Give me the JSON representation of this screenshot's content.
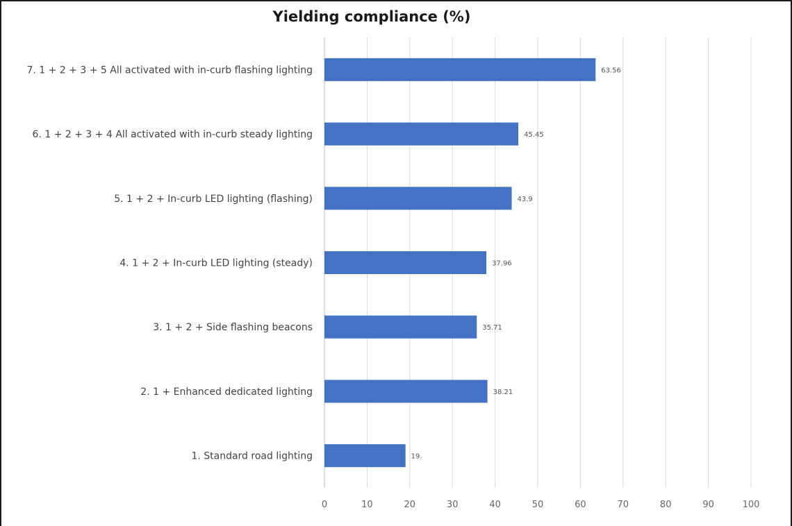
{
  "chart_data": {
    "type": "bar",
    "orientation": "horizontal",
    "title": "Yielding compliance (%)",
    "categories": [
      "7. 1 + 2 + 3 + 5 All activated with in-curb flashing lighting",
      "6. 1 + 2 + 3 + 4 All activated with in-curb steady lighting",
      "5. 1 + 2 + In-curb LED lighting (flashing)",
      "4. 1 + 2 + In-curb LED lighting (steady)",
      "3. 1 + 2 + Side flashing beacons",
      "2. 1 + Enhanced dedicated lighting",
      "1. Standard road lighting"
    ],
    "values": [
      63.56,
      45.45,
      43.9,
      37.96,
      35.71,
      38.21,
      19
    ],
    "data_labels": [
      "63.56",
      "45.45",
      "43.9",
      "37.96",
      "35.71",
      "38.21",
      "19."
    ],
    "xlim": [
      0,
      100
    ],
    "x_ticks": [
      "0",
      "10",
      "20",
      "30",
      "40",
      "50",
      "60",
      "70",
      "80",
      "90",
      "100"
    ],
    "x_tick_values": [
      0,
      10,
      20,
      30,
      40,
      50,
      60,
      70,
      80,
      90,
      100
    ],
    "grid": "vertical",
    "bar_color": "#4472c4",
    "grid_color": "#d9d9d9"
  }
}
